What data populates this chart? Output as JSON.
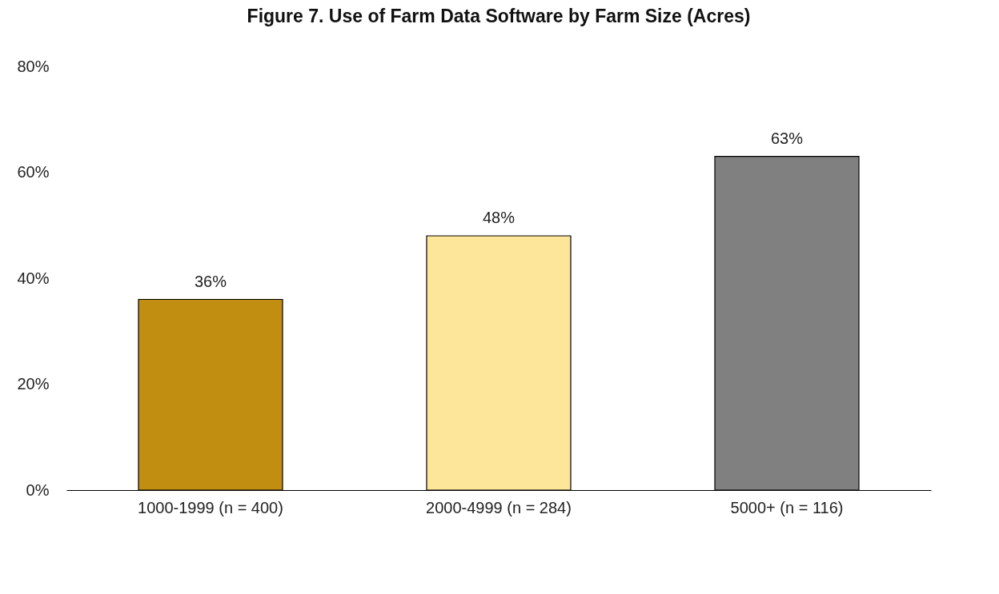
{
  "chart_data": {
    "type": "bar",
    "title": "Figure 7. Use of Farm Data Software by Farm Size (Acres)",
    "categories": [
      "1000-1999 (n = 400)",
      "2000-4999 (n = 284)",
      "5000+ (n = 116)"
    ],
    "values": [
      36,
      48,
      63
    ],
    "value_labels": [
      "36%",
      "48%",
      "63%"
    ],
    "colors": [
      "#c18e11",
      "#fde59a",
      "#808080"
    ],
    "ylim": [
      0,
      80
    ],
    "yticks": [
      {
        "value": 0,
        "label": "0%"
      },
      {
        "value": 20,
        "label": "20%"
      },
      {
        "value": 40,
        "label": "40%"
      },
      {
        "value": 60,
        "label": "60%"
      },
      {
        "value": 80,
        "label": "80%"
      }
    ],
    "grid": false
  }
}
